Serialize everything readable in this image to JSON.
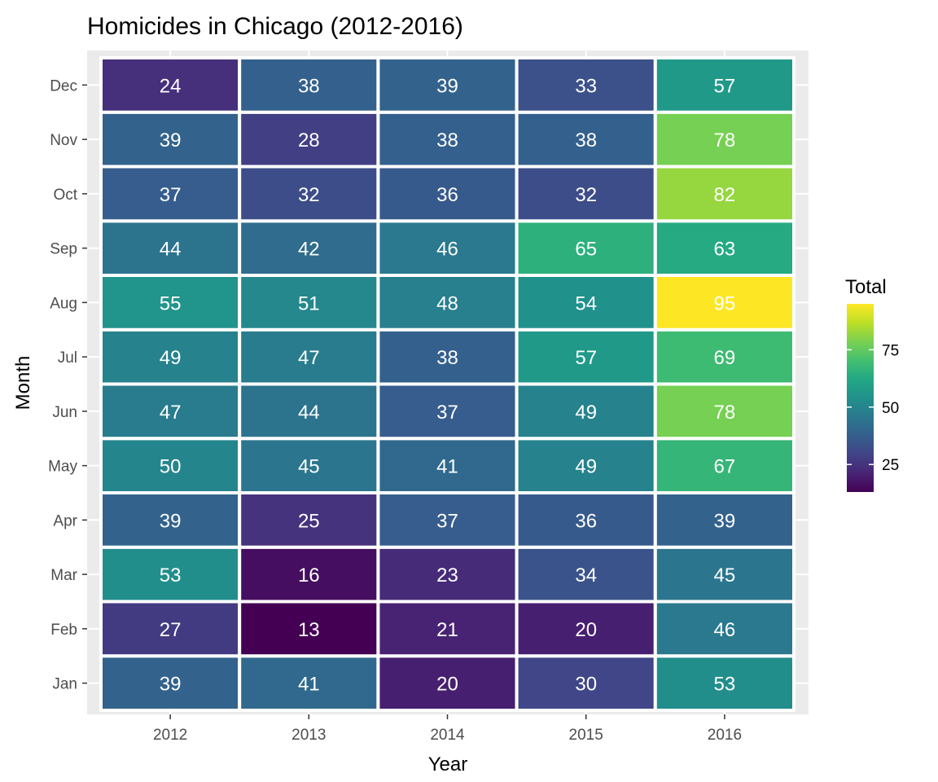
{
  "chart_data": {
    "type": "heatmap",
    "title": "Homicides in Chicago (2012-2016)",
    "xlabel": "Year",
    "ylabel": "Month",
    "x": [
      "2012",
      "2013",
      "2014",
      "2015",
      "2016"
    ],
    "y": [
      "Jan",
      "Feb",
      "Mar",
      "Apr",
      "May",
      "Jun",
      "Jul",
      "Aug",
      "Sep",
      "Oct",
      "Nov",
      "Dec"
    ],
    "values": [
      [
        39,
        41,
        20,
        30,
        53
      ],
      [
        27,
        13,
        21,
        20,
        46
      ],
      [
        53,
        16,
        23,
        34,
        45
      ],
      [
        39,
        25,
        37,
        36,
        39
      ],
      [
        50,
        45,
        41,
        49,
        67
      ],
      [
        47,
        44,
        37,
        49,
        78
      ],
      [
        49,
        47,
        38,
        57,
        69
      ],
      [
        55,
        51,
        48,
        54,
        95
      ],
      [
        44,
        42,
        46,
        65,
        63
      ],
      [
        37,
        32,
        36,
        32,
        82
      ],
      [
        39,
        28,
        38,
        38,
        78
      ],
      [
        24,
        38,
        39,
        33,
        57
      ]
    ],
    "legend": {
      "title": "Total",
      "placement": "right",
      "ticks": [
        "25",
        "50",
        "75"
      ],
      "colormap": "viridis"
    },
    "grid": true,
    "panel_background": "#ebebeb",
    "label_color": "#ffffff"
  }
}
